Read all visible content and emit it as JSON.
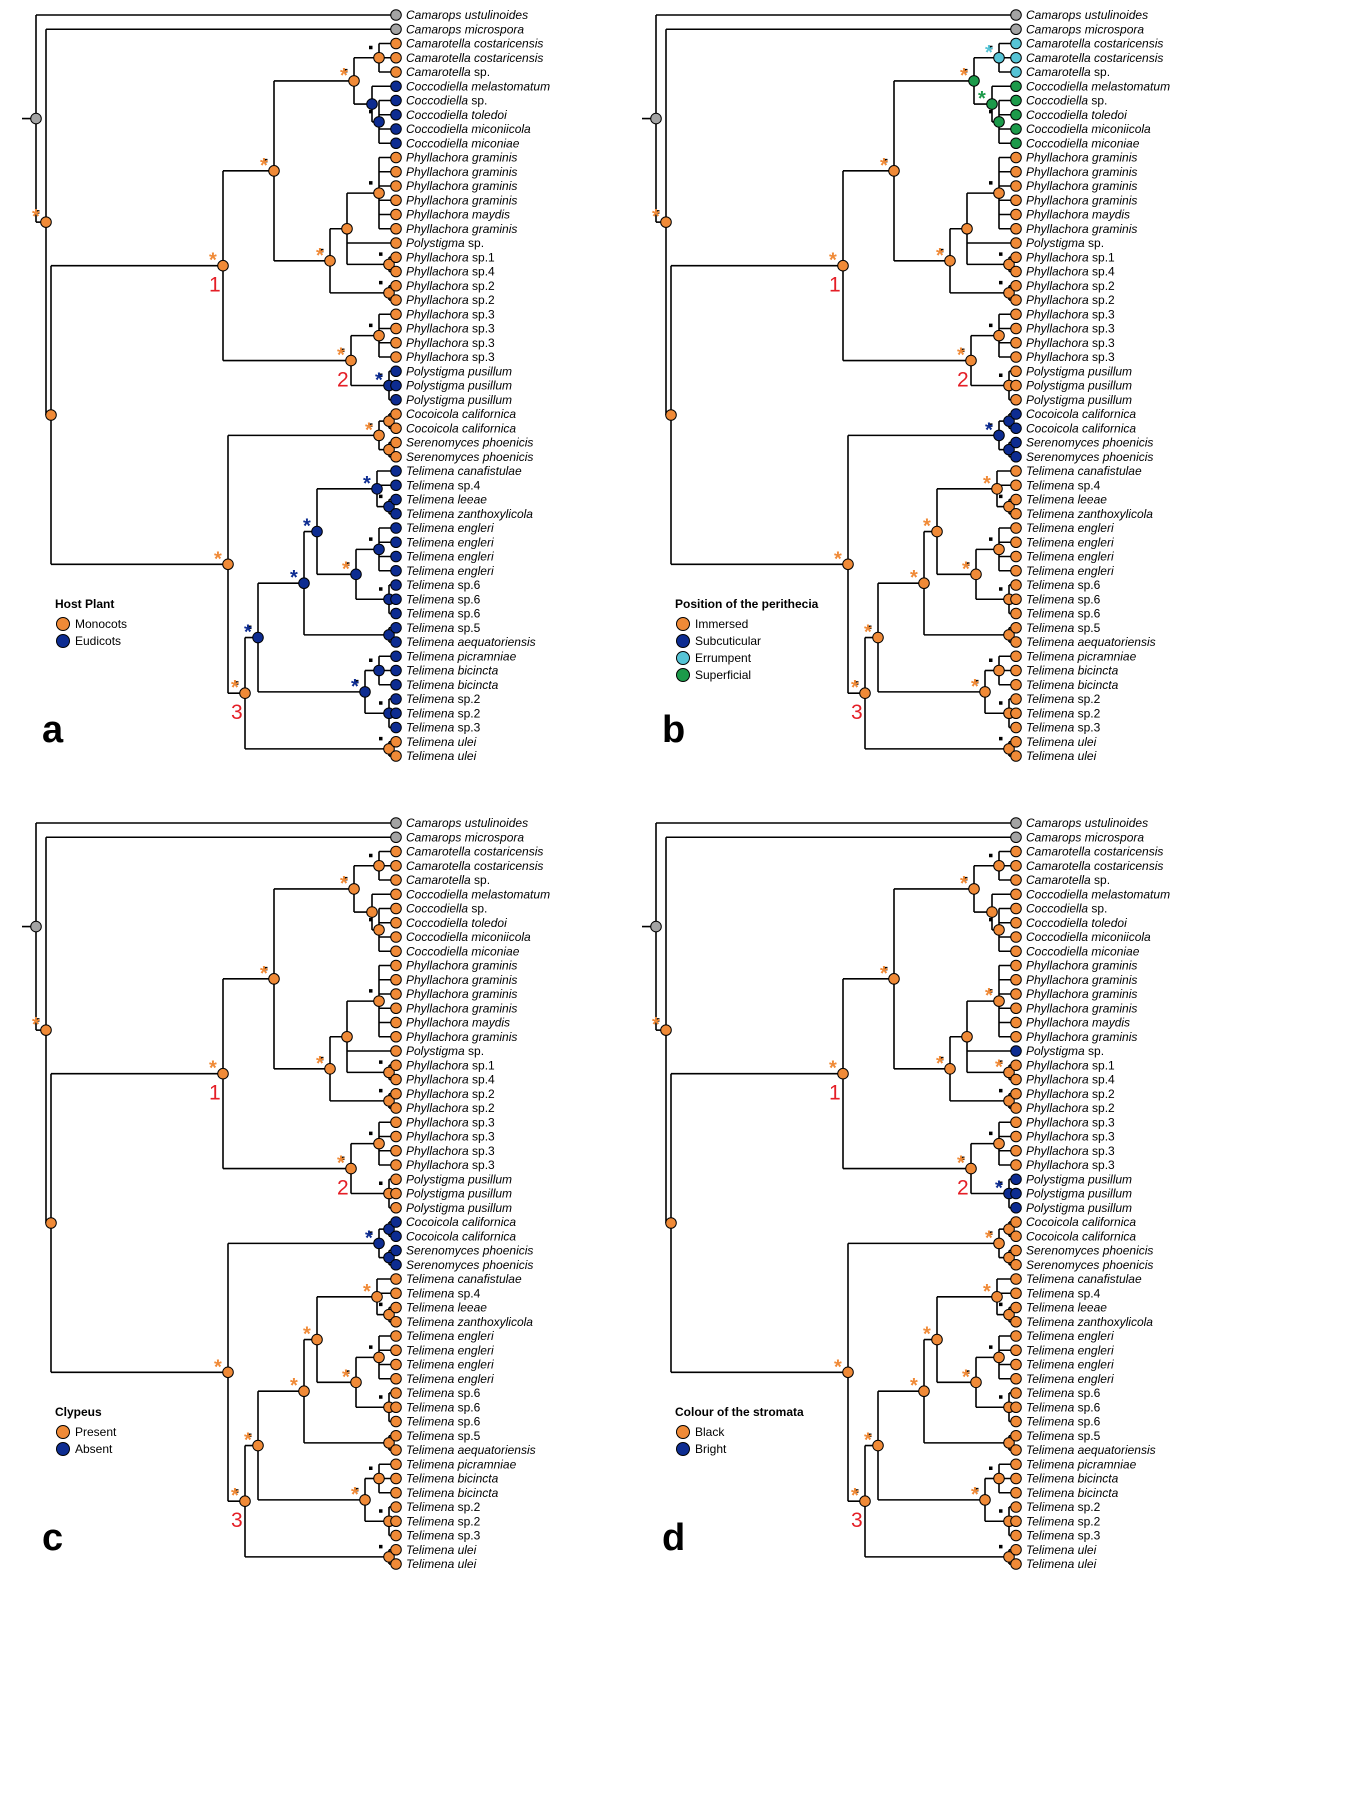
{
  "taxa": [
    "Camarops ustulinoides",
    "Camarops microspora",
    "Camarotella costaricensis",
    "Camarotella costaricensis",
    "Camarotella sp.",
    "Coccodiella melastomatum",
    "Coccodiella sp.",
    "Coccodiella toledoi",
    "Coccodiella miconiicola",
    "Coccodiella miconiae",
    "Phyllachora graminis",
    "Phyllachora graminis",
    "Phyllachora graminis",
    "Phyllachora graminis",
    "Phyllachora maydis",
    "Phyllachora graminis",
    "Polystigma sp.",
    "Phyllachora sp.1",
    "Phyllachora sp.4",
    "Phyllachora sp.2",
    "Phyllachora sp.2",
    "Phyllachora sp.3",
    "Phyllachora sp.3",
    "Phyllachora sp.3",
    "Phyllachora sp.3",
    "Polystigma pusillum",
    "Polystigma pusillum",
    "Polystigma pusillum",
    "Cocoicola californica",
    "Cocoicola californica",
    "Serenomyces phoenicis",
    "Serenomyces phoenicis",
    "Telimena canafistulae",
    "Telimena sp.4",
    "Telimena leeae",
    "Telimena zanthoxylicola",
    "Telimena engleri",
    "Telimena engleri",
    "Telimena engleri",
    "Telimena engleri",
    "Telimena sp.6",
    "Telimena sp.6",
    "Telimena sp.6",
    "Telimena sp.5",
    "Telimena aequatoriensis",
    "Telimena picramniae",
    "Telimena bicincta",
    "Telimena bicincta",
    "Telimena sp.2",
    "Telimena sp.2",
    "Telimena sp.3",
    "Telimena ulei",
    "Telimena ulei"
  ],
  "clade_numbers": [
    "1",
    "2",
    "3"
  ],
  "colors": {
    "orange": "#f08a37",
    "dark_blue": "#0d2c91",
    "light_blue": "#56c4d6",
    "green": "#1c9a4a",
    "grey": "#a3a3a3",
    "red_label": "#e41e26"
  },
  "panels": [
    {
      "letter": "a",
      "legend": {
        "title": "Host Plant",
        "items": [
          {
            "label": "Monocots",
            "color": "#f08a37"
          },
          {
            "label": "Eudicots",
            "color": "#0d2c91"
          }
        ]
      }
    },
    {
      "letter": "b",
      "legend": {
        "title": "Position of the perithecia",
        "items": [
          {
            "label": "Immersed",
            "color": "#f08a37"
          },
          {
            "label": "Subcuticular",
            "color": "#0d2c91"
          },
          {
            "label": "Errumpent",
            "color": "#56c4d6"
          },
          {
            "label": "Superficial",
            "color": "#1c9a4a"
          }
        ]
      }
    },
    {
      "letter": "c",
      "legend": {
        "title": "Clypeus",
        "items": [
          {
            "label": "Present",
            "color": "#f08a37"
          },
          {
            "label": "Absent",
            "color": "#0d2c91"
          }
        ]
      }
    },
    {
      "letter": "d",
      "legend": {
        "title": "Colour of the stromata",
        "items": [
          {
            "label": "Black",
            "color": "#f08a37"
          },
          {
            "label": "Bright",
            "color": "#0d2c91"
          }
        ]
      }
    }
  ]
}
